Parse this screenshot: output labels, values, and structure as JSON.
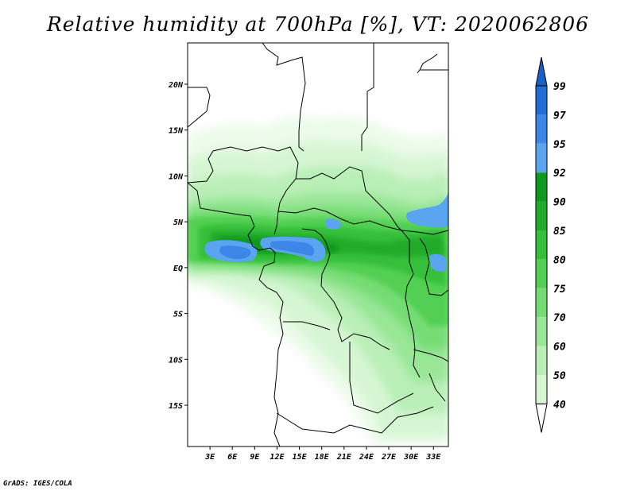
{
  "title": "Relative humidity at 700hPa [%], VT: 2020062806",
  "credit": "GrADS: IGES/COLA",
  "map": {
    "lon_range": [
      0,
      35
    ],
    "lat_range": [
      -19.5,
      24.5
    ],
    "lat_ticks": [
      {
        "value": 20,
        "label": "20N"
      },
      {
        "value": 15,
        "label": "15N"
      },
      {
        "value": 10,
        "label": "10N"
      },
      {
        "value": 5,
        "label": "5N"
      },
      {
        "value": 0,
        "label": "EQ"
      },
      {
        "value": -5,
        "label": "5S"
      },
      {
        "value": -10,
        "label": "10S"
      },
      {
        "value": -15,
        "label": "15S"
      }
    ],
    "lon_ticks": [
      {
        "value": 3,
        "label": "3E"
      },
      {
        "value": 6,
        "label": "6E"
      },
      {
        "value": 9,
        "label": "9E"
      },
      {
        "value": 12,
        "label": "12E"
      },
      {
        "value": 15,
        "label": "15E"
      },
      {
        "value": 18,
        "label": "18E"
      },
      {
        "value": 21,
        "label": "21E"
      },
      {
        "value": 24,
        "label": "24E"
      },
      {
        "value": 27,
        "label": "27E"
      },
      {
        "value": 30,
        "label": "30E"
      },
      {
        "value": 33,
        "label": "33E"
      }
    ]
  },
  "colorbar": {
    "levels": [
      {
        "label": "99",
        "color": "#1f6fd6"
      },
      {
        "label": "97",
        "color": "#3d86e8"
      },
      {
        "label": "95",
        "color": "#5aa4f0"
      },
      {
        "label": "92",
        "color": "#0f9a1f"
      },
      {
        "label": "90",
        "color": "#21ab2a"
      },
      {
        "label": "85",
        "color": "#36bf3b"
      },
      {
        "label": "80",
        "color": "#52d052"
      },
      {
        "label": "75",
        "color": "#75dc73"
      },
      {
        "label": "70",
        "color": "#99e697"
      },
      {
        "label": "60",
        "color": "#b9efb7"
      },
      {
        "label": "50",
        "color": "#d6f6d3"
      },
      {
        "label": "40",
        "color": "#ecfbea"
      }
    ],
    "top_color": "#1a5fc4",
    "bottom_color": "#ffffff"
  }
}
